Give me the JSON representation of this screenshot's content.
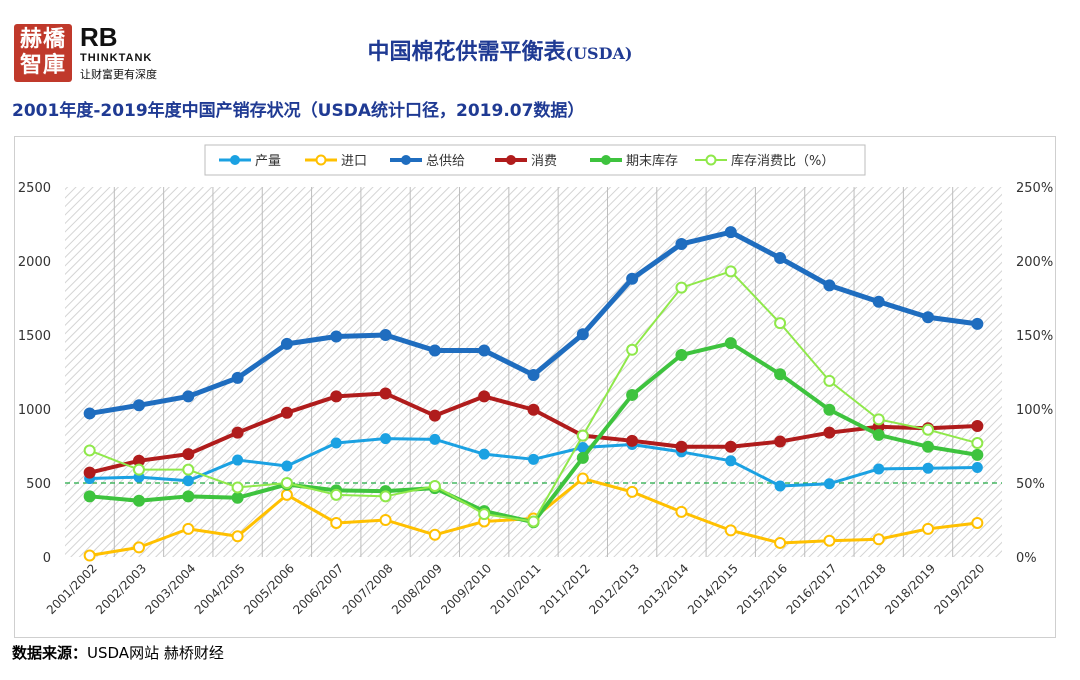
{
  "logo": {
    "cn_text": "赫橋\n智庫",
    "brand": "RB",
    "brand_sub": "THINKTANK",
    "slogan": "让财富更有深度"
  },
  "header": {
    "title": "中国棉花供需平衡表",
    "title_suffix": "(USDA)",
    "subtitle": "2001年度-2019年度中国产销存状况（USDA统计口径，2019.07数据）"
  },
  "source": {
    "label": "数据来源：",
    "text": "USDA网站  赫桥财经"
  },
  "chart_data": {
    "type": "line",
    "title": "",
    "xlabel": "",
    "ylabel": "",
    "ylim": [
      0,
      2500
    ],
    "y2lim": [
      0,
      250
    ],
    "y_ticks": [
      "0",
      "500",
      "1000",
      "1500",
      "2000",
      "2500"
    ],
    "y2_ticks": [
      "0%",
      "50%",
      "100%",
      "150%",
      "200%",
      "250%"
    ],
    "grid": false,
    "background": "hatched",
    "reference_line": {
      "axis": "y",
      "value": 500,
      "color": "#22aa44",
      "style": "dashed"
    },
    "legend_position": "top",
    "categories": [
      "2001/2002",
      "2002/2003",
      "2003/2004",
      "2004/2005",
      "2005/2006",
      "2006/2007",
      "2007/2008",
      "2008/2009",
      "2009/2010",
      "2010/2011",
      "2011/2012",
      "2012/2013",
      "2013/2014",
      "2014/2015",
      "2015/2016",
      "2016/2017",
      "2017/2018",
      "2018/2019",
      "2019/2020"
    ],
    "series": [
      {
        "name": "产量",
        "axis": "left",
        "color": "#1ba1e2",
        "width": 3,
        "hollow": false,
        "values": [
          530,
          540,
          515,
          655,
          615,
          770,
          800,
          795,
          695,
          660,
          740,
          760,
          710,
          650,
          480,
          495,
          595,
          600,
          605
        ]
      },
      {
        "name": "进口",
        "axis": "left",
        "color": "#ffc000",
        "width": 3,
        "hollow": true,
        "values": [
          10,
          65,
          190,
          140,
          420,
          230,
          250,
          150,
          240,
          260,
          530,
          440,
          305,
          180,
          95,
          110,
          120,
          190,
          230
        ]
      },
      {
        "name": "总供给",
        "axis": "left",
        "color": "#1f6dbf",
        "width": 5,
        "hollow": false,
        "values": [
          970,
          1025,
          1085,
          1210,
          1440,
          1490,
          1500,
          1395,
          1395,
          1230,
          1505,
          1880,
          2115,
          2195,
          2020,
          1835,
          1725,
          1620,
          1575
        ]
      },
      {
        "name": "消费",
        "axis": "left",
        "color": "#b01c1c",
        "width": 4,
        "hollow": false,
        "values": [
          570,
          650,
          695,
          840,
          975,
          1085,
          1105,
          955,
          1085,
          995,
          820,
          785,
          745,
          745,
          780,
          840,
          880,
          870,
          885
        ]
      },
      {
        "name": "期末库存",
        "axis": "left",
        "color": "#3ec33e",
        "width": 4,
        "hollow": false,
        "values": [
          410,
          380,
          410,
          400,
          490,
          450,
          445,
          465,
          310,
          235,
          670,
          1095,
          1365,
          1445,
          1235,
          995,
          825,
          745,
          690
        ]
      },
      {
        "name": "库存消费比（%）",
        "axis": "right",
        "color": "#8fe84a",
        "width": 2,
        "hollow": true,
        "values": [
          72,
          59,
          59,
          47,
          50,
          42,
          41,
          48,
          29,
          24,
          82,
          140,
          182,
          193,
          158,
          119,
          93,
          86,
          77
        ]
      }
    ]
  }
}
